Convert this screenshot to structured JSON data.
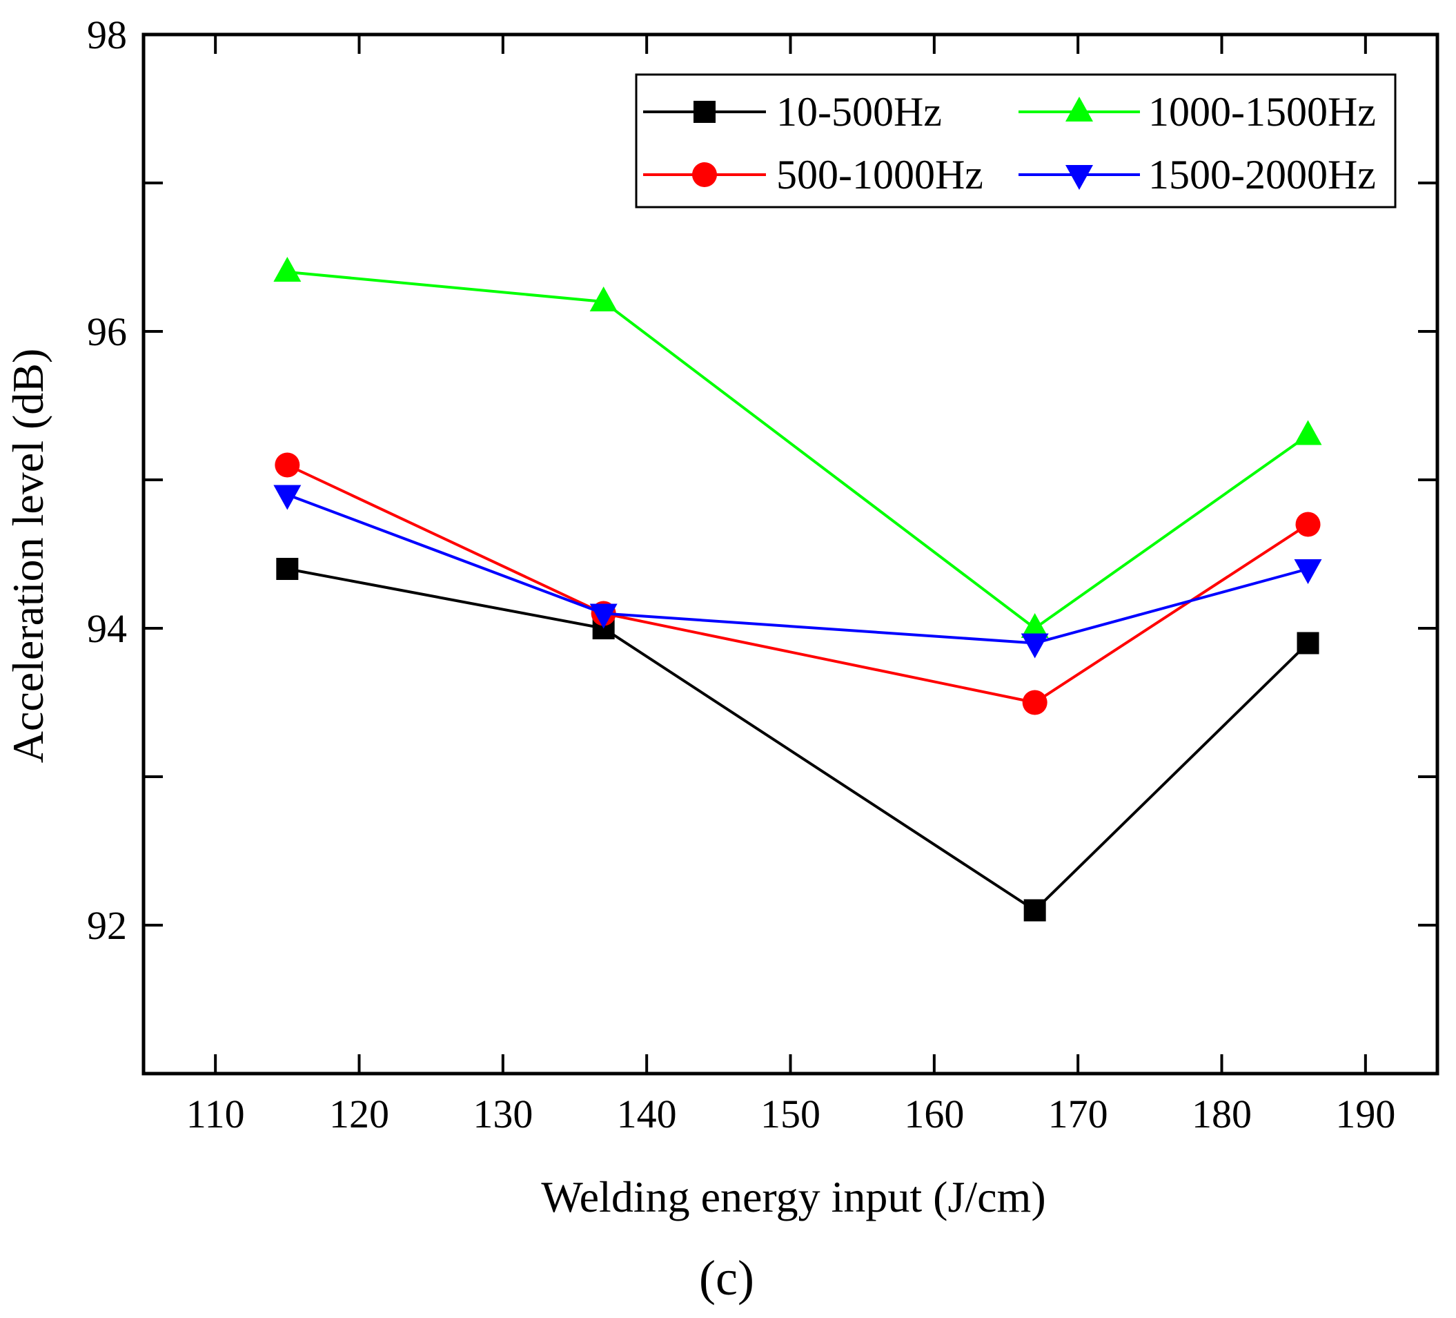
{
  "chart_data": {
    "type": "line",
    "title": "",
    "xlabel": "Welding energy input (J/cm)",
    "ylabel": "Acceleration level (dB)",
    "xlim": [
      105,
      195
    ],
    "ylim": [
      91,
      98
    ],
    "xticks": [
      110,
      120,
      130,
      140,
      150,
      160,
      170,
      180,
      190
    ],
    "yticks_labeled": [
      92,
      94,
      96,
      98
    ],
    "yticks_minor": [
      93,
      95,
      97
    ],
    "x": [
      115,
      137,
      167,
      186
    ],
    "series": [
      {
        "name": "10-500Hz",
        "marker": "square",
        "color": "#000000",
        "values": [
          94.4,
          94.0,
          92.1,
          93.9
        ]
      },
      {
        "name": "500-1000Hz",
        "marker": "circle",
        "color": "#ff0000",
        "values": [
          95.1,
          94.1,
          93.5,
          94.7
        ]
      },
      {
        "name": "1000-1500Hz",
        "marker": "triangle-up",
        "color": "#00ff00",
        "values": [
          96.4,
          96.2,
          94.0,
          95.3
        ]
      },
      {
        "name": "1500-2000Hz",
        "marker": "triangle-down",
        "color": "#0000ff",
        "values": [
          94.9,
          94.1,
          93.9,
          94.4
        ]
      }
    ],
    "legend": "top-right",
    "panel_label": "(c)"
  }
}
